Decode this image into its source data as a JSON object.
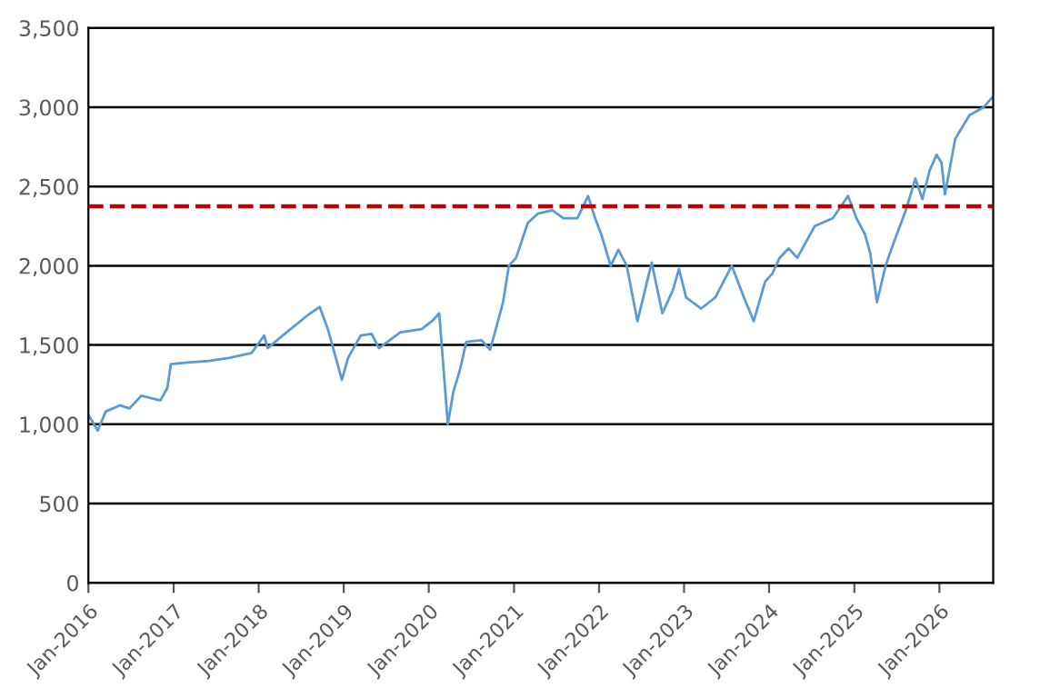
{
  "chart_data": {
    "type": "line",
    "xlim": [
      "2016-01-01",
      "2026-08-20"
    ],
    "xticks": [
      {
        "value": "2016-01-01",
        "label": "Jan-2016"
      },
      {
        "value": "2017-01-01",
        "label": "Jan-2017"
      },
      {
        "value": "2018-01-01",
        "label": "Jan-2018"
      },
      {
        "value": "2019-01-01",
        "label": "Jan-2019"
      },
      {
        "value": "2020-01-01",
        "label": "Jan-2020"
      },
      {
        "value": "2021-01-01",
        "label": "Jan-2021"
      },
      {
        "value": "2022-01-01",
        "label": "Jan-2022"
      },
      {
        "value": "2023-01-01",
        "label": "Jan-2023"
      },
      {
        "value": "2024-01-01",
        "label": "Jan-2024"
      },
      {
        "value": "2025-01-01",
        "label": "Jan-2025"
      },
      {
        "value": "2026-01-01",
        "label": "Jan-2026"
      }
    ],
    "ylim": [
      0,
      3500
    ],
    "yticks": [
      {
        "value": 0,
        "label": "0"
      },
      {
        "value": 500,
        "label": "500"
      },
      {
        "value": 1000,
        "label": "1,000"
      },
      {
        "value": 1500,
        "label": "1,500"
      },
      {
        "value": 2000,
        "label": "2,000"
      },
      {
        "value": 2500,
        "label": "2,500"
      },
      {
        "value": 3000,
        "label": "3,000"
      },
      {
        "value": 3500,
        "label": "3,500"
      }
    ],
    "grid": "y",
    "legend": false,
    "marker": "none",
    "line_style": "solid",
    "ref_lines": [
      {
        "axis": "y",
        "value": 2375,
        "color": "#c00000",
        "line_style": "dashed"
      }
    ],
    "series": [
      {
        "color": "#5b9bd5",
        "x": [
          "2016-01-01",
          "2016-02-10",
          "2016-03-15",
          "2016-05-15",
          "2016-06-25",
          "2016-08-15",
          "2016-11-05",
          "2016-12-05",
          "2016-12-20",
          "2017-03-01",
          "2017-06-01",
          "2017-09-01",
          "2017-12-01",
          "2018-01-25",
          "2018-02-08",
          "2018-05-01",
          "2018-08-01",
          "2018-09-20",
          "2018-10-25",
          "2018-12-24",
          "2019-01-20",
          "2019-03-15",
          "2019-05-01",
          "2019-06-01",
          "2019-09-01",
          "2019-12-01",
          "2020-01-15",
          "2020-02-15",
          "2020-03-23",
          "2020-04-15",
          "2020-05-15",
          "2020-06-10",
          "2020-08-15",
          "2020-09-20",
          "2020-10-15",
          "2020-11-15",
          "2020-12-10",
          "2021-01-10",
          "2021-03-01",
          "2021-04-15",
          "2021-06-15",
          "2021-08-01",
          "2021-09-30",
          "2021-11-15",
          "2021-12-15",
          "2022-01-10",
          "2022-02-20",
          "2022-03-25",
          "2022-04-30",
          "2022-06-15",
          "2022-08-15",
          "2022-09-30",
          "2022-11-15",
          "2022-12-10",
          "2023-01-10",
          "2023-03-15",
          "2023-05-15",
          "2023-07-25",
          "2023-09-15",
          "2023-10-27",
          "2023-12-15",
          "2024-01-15",
          "2024-02-15",
          "2024-03-25",
          "2024-05-01",
          "2024-07-15",
          "2024-10-01",
          "2024-12-05",
          "2025-01-10",
          "2025-02-15",
          "2025-03-10",
          "2025-04-08",
          "2025-05-15",
          "2025-06-20",
          "2025-08-10",
          "2025-09-20",
          "2025-10-20",
          "2025-11-20",
          "2025-12-20",
          "2026-01-10",
          "2026-01-25",
          "2026-03-10",
          "2026-05-10",
          "2026-07-10",
          "2026-08-15"
        ],
        "values": [
          1060,
          960,
          1080,
          1120,
          1100,
          1180,
          1150,
          1230,
          1380,
          1390,
          1400,
          1420,
          1450,
          1560,
          1480,
          1580,
          1690,
          1740,
          1600,
          1280,
          1420,
          1560,
          1570,
          1480,
          1580,
          1600,
          1650,
          1700,
          1000,
          1200,
          1350,
          1520,
          1530,
          1470,
          1600,
          1770,
          2000,
          2050,
          2270,
          2330,
          2350,
          2300,
          2300,
          2440,
          2300,
          2200,
          2000,
          2100,
          2000,
          1650,
          2020,
          1700,
          1850,
          1980,
          1800,
          1730,
          1800,
          2000,
          1800,
          1650,
          1900,
          1950,
          2050,
          2110,
          2050,
          2250,
          2300,
          2440,
          2300,
          2200,
          2080,
          1770,
          2000,
          2150,
          2350,
          2550,
          2420,
          2600,
          2700,
          2650,
          2450,
          2800,
          2950,
          3000,
          3060
        ]
      }
    ]
  }
}
